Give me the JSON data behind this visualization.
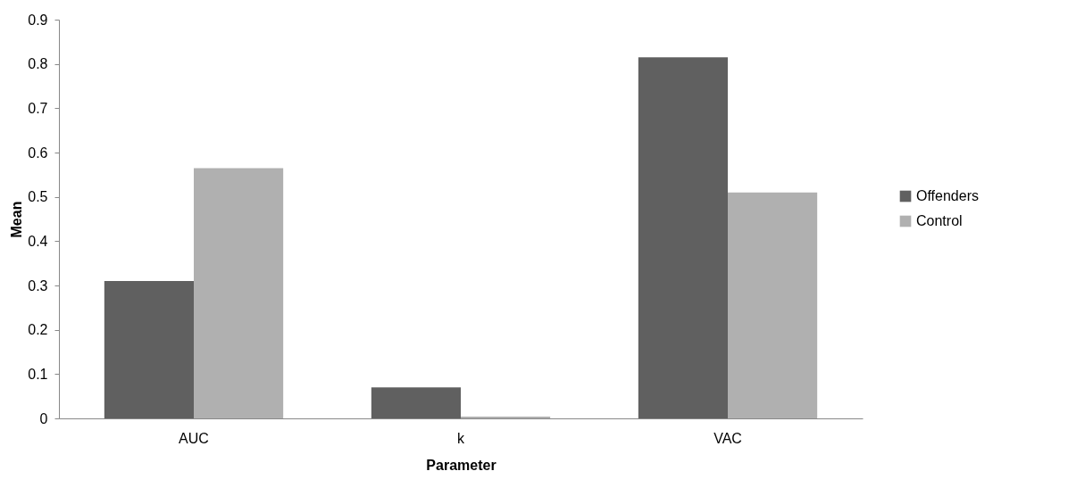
{
  "chart_data": {
    "type": "bar",
    "xlabel": "Parameter",
    "ylabel": "Mean",
    "categories": [
      "AUC",
      "k",
      "VAC"
    ],
    "series": [
      {
        "name": "Offenders",
        "color": "#606060",
        "values": [
          0.31,
          0.07,
          0.815
        ]
      },
      {
        "name": "Control",
        "color": "#b0b0b0",
        "values": [
          0.565,
          0.004,
          0.51
        ]
      }
    ],
    "ylim": [
      0,
      0.9
    ],
    "yticks": [
      0,
      0.1,
      0.2,
      0.3,
      0.4,
      0.5,
      0.6,
      0.7,
      0.8,
      0.9
    ],
    "grid": false,
    "legend": "right"
  }
}
